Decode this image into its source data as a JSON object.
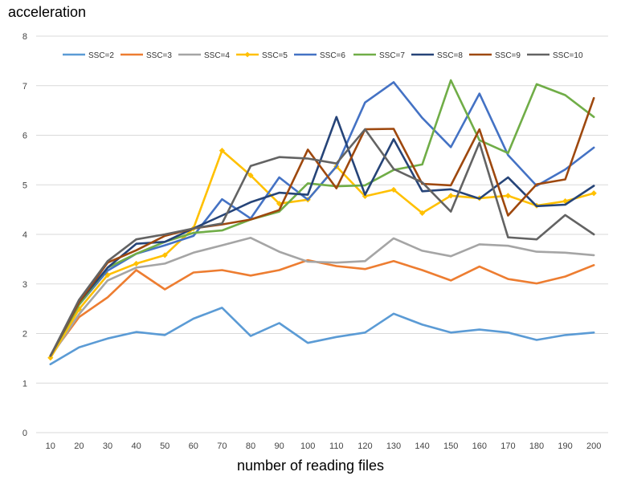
{
  "chart_data": {
    "type": "line",
    "title": "",
    "xlabel": "number of reading files",
    "ylabel": "acceleration",
    "ylim": [
      0,
      8
    ],
    "yticks": [
      "0",
      "1",
      "2",
      "3",
      "4",
      "5",
      "6",
      "7",
      "8"
    ],
    "categories": [
      "10",
      "20",
      "30",
      "40",
      "50",
      "60",
      "70",
      "80",
      "90",
      "100",
      "110",
      "120",
      "130",
      "140",
      "150",
      "160",
      "170",
      "180",
      "190",
      "200"
    ],
    "grid": "horizontal",
    "legend_position": "top",
    "series": [
      {
        "name": "SSC=2",
        "color": "#5B9BD5",
        "marker": false,
        "values": [
          1.38,
          1.72,
          1.9,
          2.03,
          1.97,
          2.3,
          2.52,
          1.95,
          2.21,
          1.81,
          1.93,
          2.02,
          2.4,
          2.18,
          2.02,
          2.08,
          2.02,
          1.87,
          1.97,
          2.02
        ]
      },
      {
        "name": "SSC=3",
        "color": "#ED7D31",
        "marker": false,
        "values": [
          1.55,
          2.33,
          2.73,
          3.28,
          2.89,
          3.23,
          3.28,
          3.17,
          3.28,
          3.48,
          3.36,
          3.3,
          3.46,
          3.28,
          3.07,
          3.35,
          3.1,
          3.01,
          3.15,
          3.38
        ]
      },
      {
        "name": "SSC=4",
        "color": "#A5A5A5",
        "marker": false,
        "values": [
          1.52,
          2.39,
          3.07,
          3.33,
          3.41,
          3.63,
          3.78,
          3.93,
          3.65,
          3.45,
          3.43,
          3.46,
          3.92,
          3.67,
          3.56,
          3.8,
          3.77,
          3.65,
          3.63,
          3.58
        ]
      },
      {
        "name": "SSC=5",
        "color": "#FFC000",
        "marker": true,
        "values": [
          1.51,
          2.49,
          3.18,
          3.41,
          3.58,
          4.12,
          5.69,
          5.19,
          4.62,
          4.7,
          5.37,
          4.77,
          4.9,
          4.43,
          4.78,
          4.73,
          4.78,
          4.58,
          4.67,
          4.83
        ]
      },
      {
        "name": "SSC=6",
        "color": "#4472C4",
        "marker": false,
        "values": [
          1.55,
          2.58,
          3.27,
          3.61,
          3.78,
          3.97,
          4.71,
          4.32,
          5.15,
          4.7,
          5.37,
          6.66,
          7.07,
          6.35,
          5.76,
          6.84,
          5.6,
          4.98,
          5.31,
          5.75
        ]
      },
      {
        "name": "SSC=7",
        "color": "#70AD47",
        "marker": false,
        "values": [
          1.55,
          2.58,
          3.33,
          3.61,
          3.85,
          4.03,
          4.08,
          4.3,
          4.46,
          5.03,
          4.97,
          4.99,
          5.3,
          5.41,
          7.11,
          5.9,
          5.64,
          7.03,
          6.81,
          6.37
        ]
      },
      {
        "name": "SSC=8",
        "color": "#264478",
        "marker": false,
        "values": [
          1.55,
          2.63,
          3.33,
          3.81,
          3.85,
          4.12,
          4.38,
          4.65,
          4.84,
          4.8,
          6.37,
          4.8,
          5.92,
          4.87,
          4.91,
          4.72,
          5.15,
          4.57,
          4.6,
          4.98
        ]
      },
      {
        "name": "SSC=9",
        "color": "#9E480E",
        "marker": false,
        "values": [
          1.55,
          2.63,
          3.43,
          3.68,
          3.97,
          4.12,
          4.2,
          4.3,
          4.49,
          5.71,
          4.93,
          6.12,
          6.13,
          5.02,
          4.99,
          6.12,
          4.38,
          5.01,
          5.11,
          6.75
        ]
      },
      {
        "name": "SSC=10",
        "color": "#636363",
        "marker": false,
        "values": [
          1.55,
          2.68,
          3.46,
          3.9,
          4.0,
          4.12,
          4.22,
          5.38,
          5.56,
          5.53,
          5.43,
          6.12,
          5.32,
          5.05,
          4.46,
          5.85,
          3.94,
          3.9,
          4.39,
          4.0
        ]
      }
    ]
  }
}
